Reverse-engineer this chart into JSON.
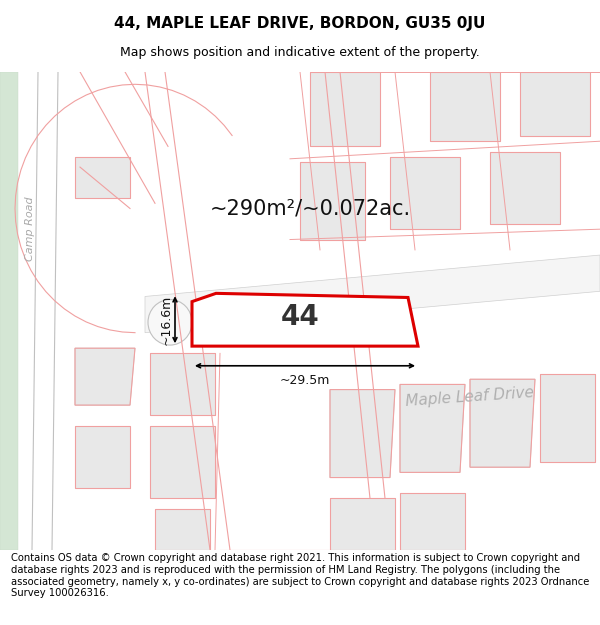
{
  "title": "44, MAPLE LEAF DRIVE, BORDON, GU35 0JU",
  "subtitle": "Map shows position and indicative extent of the property.",
  "area_label": "~290m²/~0.072ac.",
  "plot_number": "44",
  "dim_width": "~29.5m",
  "dim_height": "~16.6m",
  "road_label_main": "Maple Leaf Drive",
  "road_label_partial": "le Leaf Drive",
  "camp_road_label": "Camp Road",
  "footnote": "Contains OS data © Crown copyright and database right 2021. This information is subject to Crown copyright and database rights 2023 and is reproduced with the permission of HM Land Registry. The polygons (including the associated geometry, namely x, y co-ordinates) are subject to Crown copyright and database rights 2023 Ordnance Survey 100026316.",
  "bg_color": "#ffffff",
  "map_bg": "#ffffff",
  "building_fill": "#e8e8e8",
  "building_edge": "#cccccc",
  "pink_line": "#f0a0a0",
  "highlight_fill": "#ffffff",
  "highlight_edge": "#dd0000",
  "green_fill": "#d8e8d8",
  "title_fontsize": 11,
  "subtitle_fontsize": 9,
  "footnote_fontsize": 7.2,
  "area_fontsize": 15,
  "plot_num_fontsize": 20,
  "dim_fontsize": 9,
  "road_fontsize_main": 11,
  "road_fontsize_small": 9,
  "camp_fontsize": 8
}
